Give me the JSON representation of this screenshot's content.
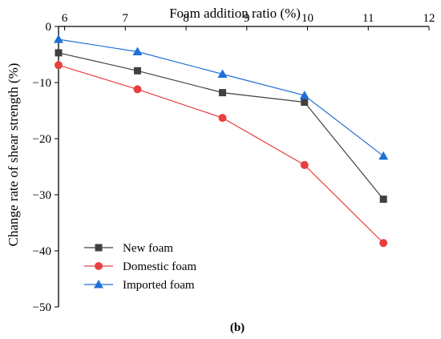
{
  "chart_data": {
    "type": "line",
    "xlabel": "Foam addition ratio (%)",
    "ylabel": "Change rate of shear strength (%)",
    "xlim": [
      5.9,
      12
    ],
    "ylim": [
      -50,
      0
    ],
    "x_axis_position": "top",
    "x_ticks": [
      6,
      7,
      8,
      9,
      10,
      11,
      12
    ],
    "y_ticks": [
      0,
      -10,
      -20,
      -30,
      -40,
      -50
    ],
    "grid": false,
    "legend_position": "bottom-left",
    "caption": "(b)",
    "series": [
      {
        "name": "New foam",
        "color": "#404040",
        "marker": "square",
        "x": [
          5.9,
          7.2,
          8.6,
          9.95,
          11.25
        ],
        "y": [
          -4.7,
          -7.9,
          -11.8,
          -13.5,
          -30.8
        ]
      },
      {
        "name": "Domestic foam",
        "color": "#e84040",
        "marker": "circle",
        "x": [
          5.9,
          7.2,
          8.6,
          9.95,
          11.25
        ],
        "y": [
          -6.9,
          -11.2,
          -16.3,
          -24.7,
          -38.6
        ]
      },
      {
        "name": "Imported foam",
        "color": "#1f6fd6",
        "marker": "triangle",
        "x": [
          5.9,
          7.2,
          8.6,
          9.95,
          11.25
        ],
        "y": [
          -2.3,
          -4.5,
          -8.5,
          -12.3,
          -23.1
        ]
      }
    ]
  }
}
